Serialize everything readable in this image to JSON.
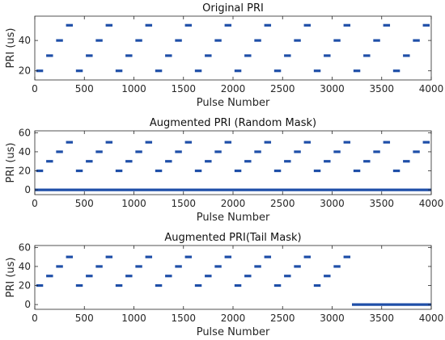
{
  "chart_data": [
    {
      "type": "scatter",
      "title": "Original PRI",
      "xlabel": "Pulse Number",
      "ylabel": "PRI (us)",
      "xlim": [
        0,
        4000
      ],
      "ylim": [
        14,
        56
      ],
      "xticks": [
        0,
        500,
        1000,
        1500,
        2000,
        2500,
        3000,
        3500,
        4000
      ],
      "yticks": [
        20,
        40
      ],
      "color": "#1f4fa8",
      "pattern": {
        "levels": [
          20,
          30,
          40,
          50
        ],
        "pulses_per_level": 100,
        "cycles": 10
      },
      "segments": [
        {
          "x_start": 0,
          "x_end": 3999,
          "note": "repeating staircase 20→30→40→50 us, 100 pulses per level"
        }
      ]
    },
    {
      "type": "scatter",
      "title": "Augmented PRI (Random Mask)",
      "xlabel": "Pulse Number",
      "ylabel": "PRI (us)",
      "xlim": [
        0,
        4000
      ],
      "ylim": [
        -5,
        62
      ],
      "xticks": [
        0,
        500,
        1000,
        1500,
        2000,
        2500,
        3000,
        3500,
        4000
      ],
      "yticks": [
        0,
        20,
        40,
        60
      ],
      "color": "#1f4fa8",
      "pattern": {
        "levels": [
          20,
          30,
          40,
          50
        ],
        "pulses_per_level": 100,
        "cycles": 10
      },
      "masked_value": 0,
      "masked_region": "random pulses across full range"
    },
    {
      "type": "scatter",
      "title": "Augmented PRI(Tail  Mask)",
      "xlabel": "Pulse Number",
      "ylabel": "PRI (us)",
      "xlim": [
        0,
        4000
      ],
      "ylim": [
        -5,
        62
      ],
      "xticks": [
        0,
        500,
        1000,
        1500,
        2000,
        2500,
        3000,
        3500,
        4000
      ],
      "yticks": [
        0,
        20,
        40,
        60
      ],
      "color": "#1f4fa8",
      "pattern": {
        "levels": [
          20,
          30,
          40,
          50
        ],
        "pulses_per_level": 100,
        "cycles": 10
      },
      "tail_mask_start": 3200,
      "masked_value": 0
    }
  ]
}
